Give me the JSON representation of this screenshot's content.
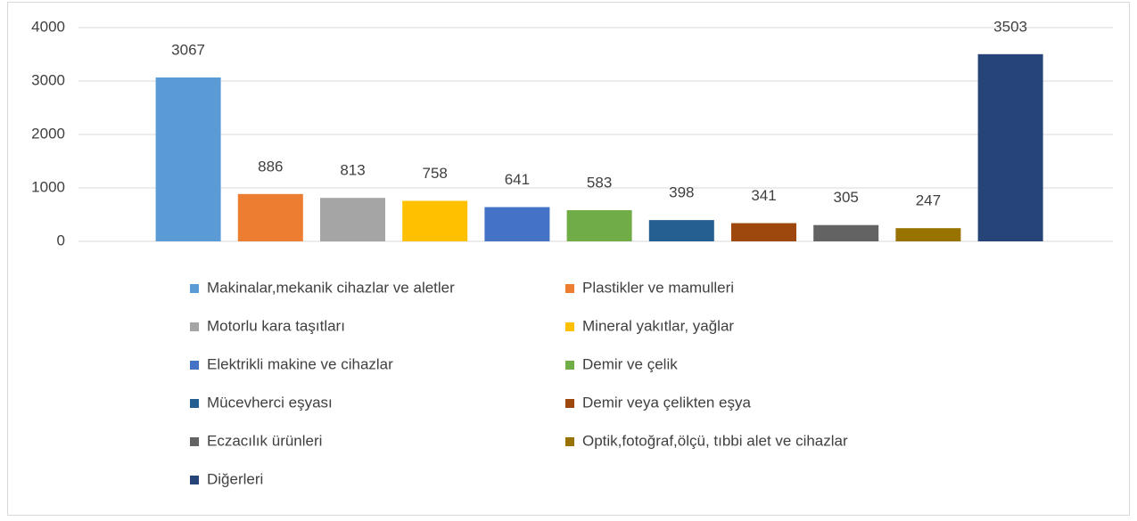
{
  "chart_data": {
    "type": "bar",
    "categories": [
      "Makinalar,mekanik cihazlar ve aletler",
      "Plastikler ve mamulleri",
      "Motorlu kara taşıtları",
      "Mineral yakıtlar, yağlar",
      "Elektrikli makine ve cihazlar",
      "Demir ve çelik",
      "Mücevherci eşyası",
      "Demir veya çelikten eşya",
      "Eczacılık ürünleri",
      "Optik,fotoğraf,ölçü, tıbbi alet ve cihazlar",
      "Diğerleri"
    ],
    "values": [
      3067,
      886,
      813,
      758,
      641,
      583,
      398,
      341,
      305,
      247,
      3503
    ],
    "colors": [
      "#5b9bd5",
      "#ed7d31",
      "#a5a5a5",
      "#ffc000",
      "#4472c4",
      "#70ad47",
      "#255e91",
      "#9e480e",
      "#636363",
      "#997300",
      "#264478"
    ],
    "ylim": [
      0,
      4000
    ],
    "yticks": [
      0,
      1000,
      2000,
      3000,
      4000
    ],
    "grid": true,
    "legend": "bottom"
  }
}
